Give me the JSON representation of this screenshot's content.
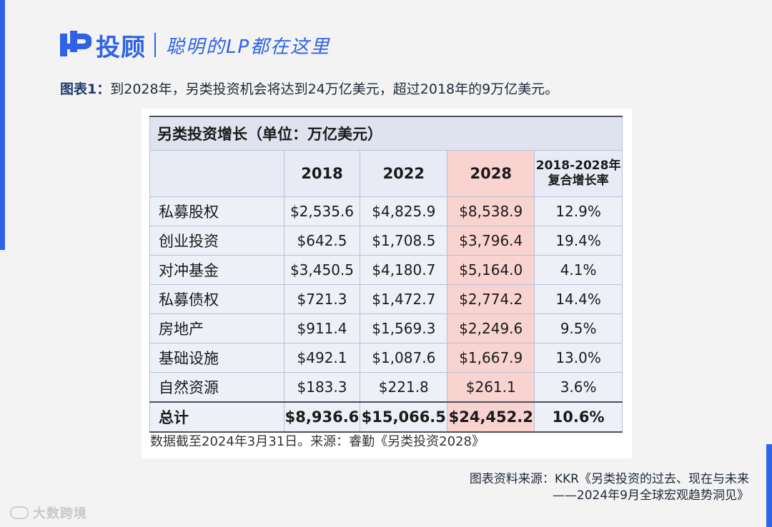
{
  "header": {
    "brand": "投顾",
    "slogan": "聪明的LP都在这里"
  },
  "caption": {
    "label": "图表1：",
    "text": "到2028年，另类投资机会将达到24万亿美元，超过2018年的9万亿美元。"
  },
  "table": {
    "title": "另类投资增长（单位：万亿美元）",
    "columns": [
      "",
      "2018",
      "2022",
      "2028",
      "2018-2028年",
      "复合增长率"
    ],
    "rows": [
      {
        "name": "私募股权",
        "v2018": "$2,535.6",
        "v2022": "$4,825.9",
        "v2028": "$8,538.9",
        "cagr": "12.9%"
      },
      {
        "name": "创业投资",
        "v2018": "$642.5",
        "v2022": "$1,708.5",
        "v2028": "$3,796.4",
        "cagr": "19.4%"
      },
      {
        "name": "对冲基金",
        "v2018": "$3,450.5",
        "v2022": "$4,180.7",
        "v2028": "$5,164.0",
        "cagr": "4.1%"
      },
      {
        "name": "私募债权",
        "v2018": "$721.3",
        "v2022": "$1,472.7",
        "v2028": "$2,774.2",
        "cagr": "14.4%"
      },
      {
        "name": "房地产",
        "v2018": "$911.4",
        "v2022": "$1,569.3",
        "v2028": "$2,249.6",
        "cagr": "9.5%"
      },
      {
        "name": "基础设施",
        "v2018": "$492.1",
        "v2022": "$1,087.6",
        "v2028": "$1,667.9",
        "cagr": "13.0%"
      },
      {
        "name": "自然资源",
        "v2018": "$183.3",
        "v2022": "$221.8",
        "v2028": "$261.1",
        "cagr": "3.6%"
      }
    ],
    "total": {
      "name": "总计",
      "v2018": "$8,936.6",
      "v2022": "$15,066.5",
      "v2028": "$24,452.2",
      "cagr": "10.6%"
    },
    "note": "数据截至2024年3月31日。来源：睿勤《另类投资2028》"
  },
  "footer": {
    "source_line1": "图表资料来源：KKR《另类投资的过去、现在与未来",
    "source_line2": "——2024年9月全球宏观趋势洞见》",
    "watermark": "大数跨境"
  },
  "colors": {
    "brand_blue": "#2f62e6",
    "highlight": "#f8d3d0",
    "table_bg": "#eef0f8"
  }
}
